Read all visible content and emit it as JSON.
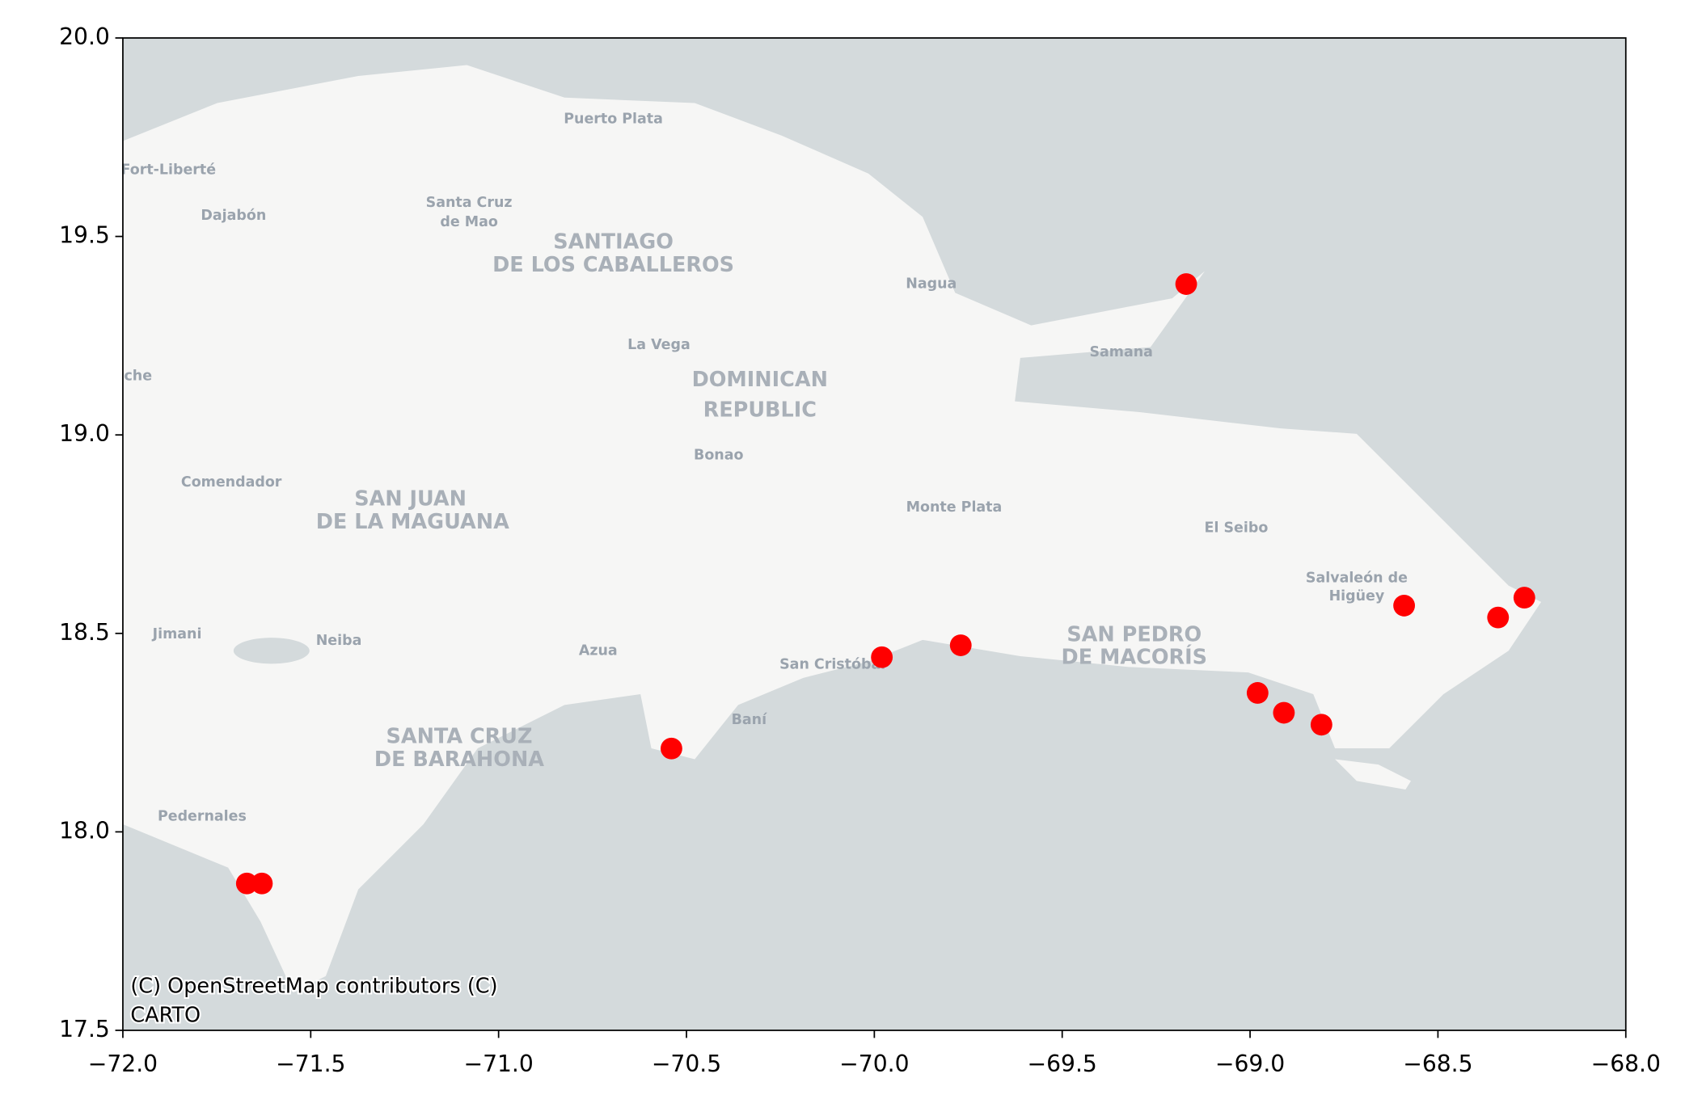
{
  "chart_data": {
    "type": "scatter",
    "x": [
      -71.67,
      -71.63,
      -70.54,
      -69.98,
      -69.77,
      -69.17,
      -68.98,
      -68.91,
      -68.81,
      -68.59,
      -68.34,
      -68.27
    ],
    "values": [
      17.87,
      17.87,
      18.21,
      18.44,
      18.47,
      19.38,
      18.35,
      18.3,
      18.27,
      18.57,
      18.54,
      18.59
    ],
    "color": "#ff0000",
    "xlim": [
      -72,
      -68
    ],
    "xticks": [
      {
        "value": -72,
        "label": "−72.0"
      },
      {
        "value": -71.5,
        "label": "−71.5"
      },
      {
        "value": -71,
        "label": "−71.0"
      },
      {
        "value": -70.5,
        "label": "−70.5"
      },
      {
        "value": -70,
        "label": "−70.0"
      },
      {
        "value": -69.5,
        "label": "−69.5"
      },
      {
        "value": -69,
        "label": "−69.0"
      },
      {
        "value": -68.5,
        "label": "−68.5"
      },
      {
        "value": -68,
        "label": "−68.0"
      }
    ],
    "ylim": [
      17.5,
      20
    ],
    "yticks": [
      17.5,
      {
        "value": 18,
        "label": "18.0"
      },
      18.5,
      {
        "value": 19,
        "label": "19.0"
      },
      19.5,
      {
        "value": 20,
        "label": "20.0"
      }
    ],
    "basemap_labels": [
      "Puerto Plata",
      "Fort-Liberté",
      "Dajabón",
      "Santa Cruz",
      "de Mao",
      "SANTIAGO",
      "DE LOS CABALLEROS",
      "Nagua",
      "La Vega",
      "Samana",
      "che",
      "DOMINICAN",
      "REPUBLIC",
      "Bonao",
      "Comendador",
      "SAN JUAN",
      "DE LA MAGUANA",
      "Monte Plata",
      "El Seibo",
      "Salvaleón de",
      "Higüey",
      "SAN PEDRO",
      "DE MACORÍS",
      "Jimani",
      "Neiba",
      "Azua",
      "San Cristóbal",
      "Baní",
      "SANTA CRUZ",
      "DE BARAHONA",
      "Pedernales"
    ],
    "attribution": [
      "(C) OpenStreetMap contributors (C)",
      "CARTO"
    ]
  }
}
